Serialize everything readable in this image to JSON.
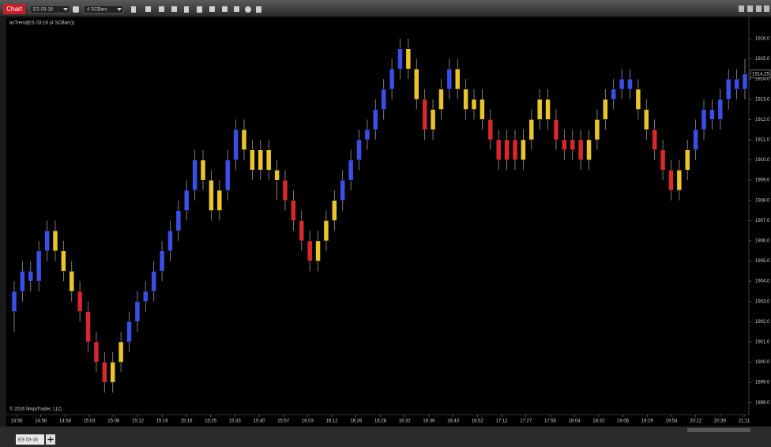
{
  "toolbar": {
    "tab": "Chart",
    "instrument": "ES 03-16",
    "bar_type": "4 SCBars"
  },
  "chart_data": {
    "type": "candlestick",
    "indicator_label": "acTrend(ES 03-16 (4 SCBars))",
    "copyright": "© 2016 NinjaTrader, LLC",
    "last_price": {
      "value": 1914.25,
      "label": "1914.25"
    },
    "bars": [
      [
        1902.5,
        1904,
        1901.5,
        1903.5
      ],
      [
        1903.5,
        1905,
        1903,
        1904.5
      ],
      [
        1904.5,
        1905,
        1903.5,
        1904
      ],
      [
        1904,
        1906,
        1903.5,
        1905.5
      ],
      [
        1905.5,
        1907,
        1905,
        1906.5
      ],
      [
        1906.5,
        1907,
        1905,
        1905.5
      ],
      [
        1905.5,
        1906,
        1904,
        1904.5
      ],
      [
        1904.5,
        1905,
        1903,
        1903.5
      ],
      [
        1903.5,
        1904,
        1902,
        1902.5
      ],
      [
        1902.5,
        1903,
        1900.5,
        1901
      ],
      [
        1901,
        1901.5,
        1899.5,
        1900
      ],
      [
        1900,
        1900.5,
        1898.5,
        1899
      ],
      [
        1899,
        1900.5,
        1898.5,
        1900
      ],
      [
        1900,
        1901.5,
        1899.5,
        1901
      ],
      [
        1901,
        1902.5,
        1900.5,
        1902
      ],
      [
        1902,
        1903.5,
        1901.5,
        1903
      ],
      [
        1903,
        1904,
        1902.5,
        1903.5
      ],
      [
        1903.5,
        1905,
        1903,
        1904.5
      ],
      [
        1904.5,
        1906,
        1904,
        1905.5
      ],
      [
        1905.5,
        1907,
        1905,
        1906.5
      ],
      [
        1906.5,
        1908,
        1906,
        1907.5
      ],
      [
        1907.5,
        1909,
        1907,
        1908.5
      ],
      [
        1908.5,
        1910.5,
        1908,
        1910
      ],
      [
        1910,
        1910.5,
        1908.5,
        1909
      ],
      [
        1909,
        1909.5,
        1907,
        1907.5
      ],
      [
        1907.5,
        1909,
        1907,
        1908.5
      ],
      [
        1908.5,
        1910.5,
        1908,
        1910
      ],
      [
        1910,
        1912,
        1909.5,
        1911.5
      ],
      [
        1911.5,
        1912,
        1910,
        1910.5
      ],
      [
        1910.5,
        1911,
        1909,
        1909.5
      ],
      [
        1909.5,
        1911,
        1909,
        1910.5
      ],
      [
        1910.5,
        1911,
        1909,
        1909.5
      ],
      [
        1909.5,
        1910,
        1908,
        1909
      ],
      [
        1909,
        1909.5,
        1907.5,
        1908
      ],
      [
        1908,
        1908.5,
        1906.5,
        1907
      ],
      [
        1907,
        1907.5,
        1905.5,
        1906
      ],
      [
        1906,
        1906.5,
        1904.5,
        1905
      ],
      [
        1905,
        1906.5,
        1904.5,
        1906
      ],
      [
        1906,
        1907.5,
        1905.5,
        1907
      ],
      [
        1907,
        1908.5,
        1906.5,
        1908
      ],
      [
        1908,
        1909.5,
        1907.5,
        1909
      ],
      [
        1909,
        1910.5,
        1908.5,
        1910
      ],
      [
        1910,
        1911.5,
        1909.5,
        1911
      ],
      [
        1911,
        1912,
        1910.5,
        1911.5
      ],
      [
        1911.5,
        1913,
        1911,
        1912.5
      ],
      [
        1912.5,
        1914,
        1912,
        1913.5
      ],
      [
        1913.5,
        1915,
        1913,
        1914.5
      ],
      [
        1914.5,
        1916,
        1914,
        1915.5
      ],
      [
        1915.5,
        1916,
        1914,
        1914.5
      ],
      [
        1914.5,
        1915,
        1912.5,
        1913
      ],
      [
        1913,
        1913.5,
        1911,
        1911.5
      ],
      [
        1911.5,
        1913,
        1911,
        1912.5
      ],
      [
        1912.5,
        1914,
        1912,
        1913.5
      ],
      [
        1913.5,
        1915,
        1913,
        1914.5
      ],
      [
        1914.5,
        1915,
        1913,
        1913.5
      ],
      [
        1913.5,
        1914,
        1912,
        1912.5
      ],
      [
        1912.5,
        1913.5,
        1912,
        1913
      ],
      [
        1913,
        1913.5,
        1911.5,
        1912
      ],
      [
        1912,
        1912.5,
        1910.5,
        1911
      ],
      [
        1911,
        1911.5,
        1909.5,
        1910
      ],
      [
        1910,
        1911.5,
        1909.5,
        1911
      ],
      [
        1911,
        1911.5,
        1909.5,
        1910
      ],
      [
        1910,
        1911.5,
        1909.5,
        1911
      ],
      [
        1911,
        1912.5,
        1910.5,
        1912
      ],
      [
        1912,
        1913.5,
        1911.5,
        1913
      ],
      [
        1913,
        1913.5,
        1911.5,
        1912
      ],
      [
        1912,
        1912.5,
        1910.5,
        1911
      ],
      [
        1911,
        1911.5,
        1910,
        1910.5
      ],
      [
        1910.5,
        1911.5,
        1910,
        1911
      ],
      [
        1911,
        1911.5,
        1909.5,
        1910
      ],
      [
        1910,
        1911.5,
        1909.5,
        1911
      ],
      [
        1911,
        1912.5,
        1910.5,
        1912
      ],
      [
        1912,
        1913.5,
        1911.5,
        1913
      ],
      [
        1913,
        1914,
        1912.5,
        1913.5
      ],
      [
        1913.5,
        1914.5,
        1913,
        1914
      ],
      [
        1914,
        1914.5,
        1913,
        1913.5
      ],
      [
        1913.5,
        1914,
        1912,
        1912.5
      ],
      [
        1912.5,
        1913,
        1911,
        1911.5
      ],
      [
        1911.5,
        1912,
        1910,
        1910.5
      ],
      [
        1910.5,
        1911,
        1909,
        1909.5
      ],
      [
        1909.5,
        1910,
        1908,
        1908.5
      ],
      [
        1908.5,
        1910,
        1908,
        1909.5
      ],
      [
        1909.5,
        1911,
        1909,
        1910.5
      ],
      [
        1910.5,
        1912,
        1910,
        1911.5
      ],
      [
        1911.5,
        1913,
        1911,
        1912.5
      ],
      [
        1912.5,
        1913,
        1911.5,
        1912
      ],
      [
        1912,
        1913.5,
        1911.5,
        1913
      ],
      [
        1913,
        1914.5,
        1912.5,
        1914
      ],
      [
        1914,
        1914.5,
        1913,
        1913.5
      ],
      [
        1913.5,
        1915,
        1913,
        1914.25
      ]
    ],
    "trend": "UUUUUFFFDDDDFFUUUUUUUUUFFFUUFFFFFDDDDFFFUUUUUUUUFFDFFUFFFFDDDDFFFFDDDDFFFUUUFFDDDFFUUUUUUU",
    "trend_colors": {
      "U": "#3a4fe6",
      "F": "#e9c52c",
      "D": "#d7282b"
    },
    "categories": [
      "14:56",
      "14:56",
      "14:58",
      "15:03",
      "15:06",
      "15:12",
      "15:16",
      "15:16",
      "15:25",
      "15:33",
      "15:40",
      "15:57",
      "16:03",
      "16:12",
      "16:26",
      "16:28",
      "16:32",
      "16:36",
      "16:43",
      "16:52",
      "17:12",
      "17:27",
      "17:55",
      "18:04",
      "18:32",
      "19:06",
      "19:29",
      "19:54",
      "20:22",
      "20:39",
      "21:11"
    ],
    "ylim": [
      1897.6,
      1916.35
    ],
    "yticks": [
      {
        "value": 1898,
        "label": "1898.0"
      },
      {
        "value": 1899,
        "label": "1899.0"
      },
      {
        "value": 1900,
        "label": "1900.0"
      },
      {
        "value": 1901,
        "label": "1901.0"
      },
      {
        "value": 1902,
        "label": "1902.0"
      },
      {
        "value": 1903,
        "label": "1903.0"
      },
      {
        "value": 1904,
        "label": "1904.0"
      },
      {
        "value": 1905,
        "label": "1905.0"
      },
      {
        "value": 1906,
        "label": "1906.0"
      },
      {
        "value": 1907,
        "label": "1907.0"
      },
      {
        "value": 1908,
        "label": "1908.0"
      },
      {
        "value": 1909,
        "label": "1909.0"
      },
      {
        "value": 1910,
        "label": "1910.0"
      },
      {
        "value": 1911,
        "label": "1911.0"
      },
      {
        "value": 1912,
        "label": "1912.0"
      },
      {
        "value": 1913,
        "label": "1913.0"
      },
      {
        "value": 1914,
        "label": "1914.0"
      },
      {
        "value": 1915,
        "label": "1915.0"
      },
      {
        "value": 1916,
        "label": "1916.0"
      }
    ]
  },
  "tabs": [
    {
      "label": "ES 03-16"
    }
  ]
}
